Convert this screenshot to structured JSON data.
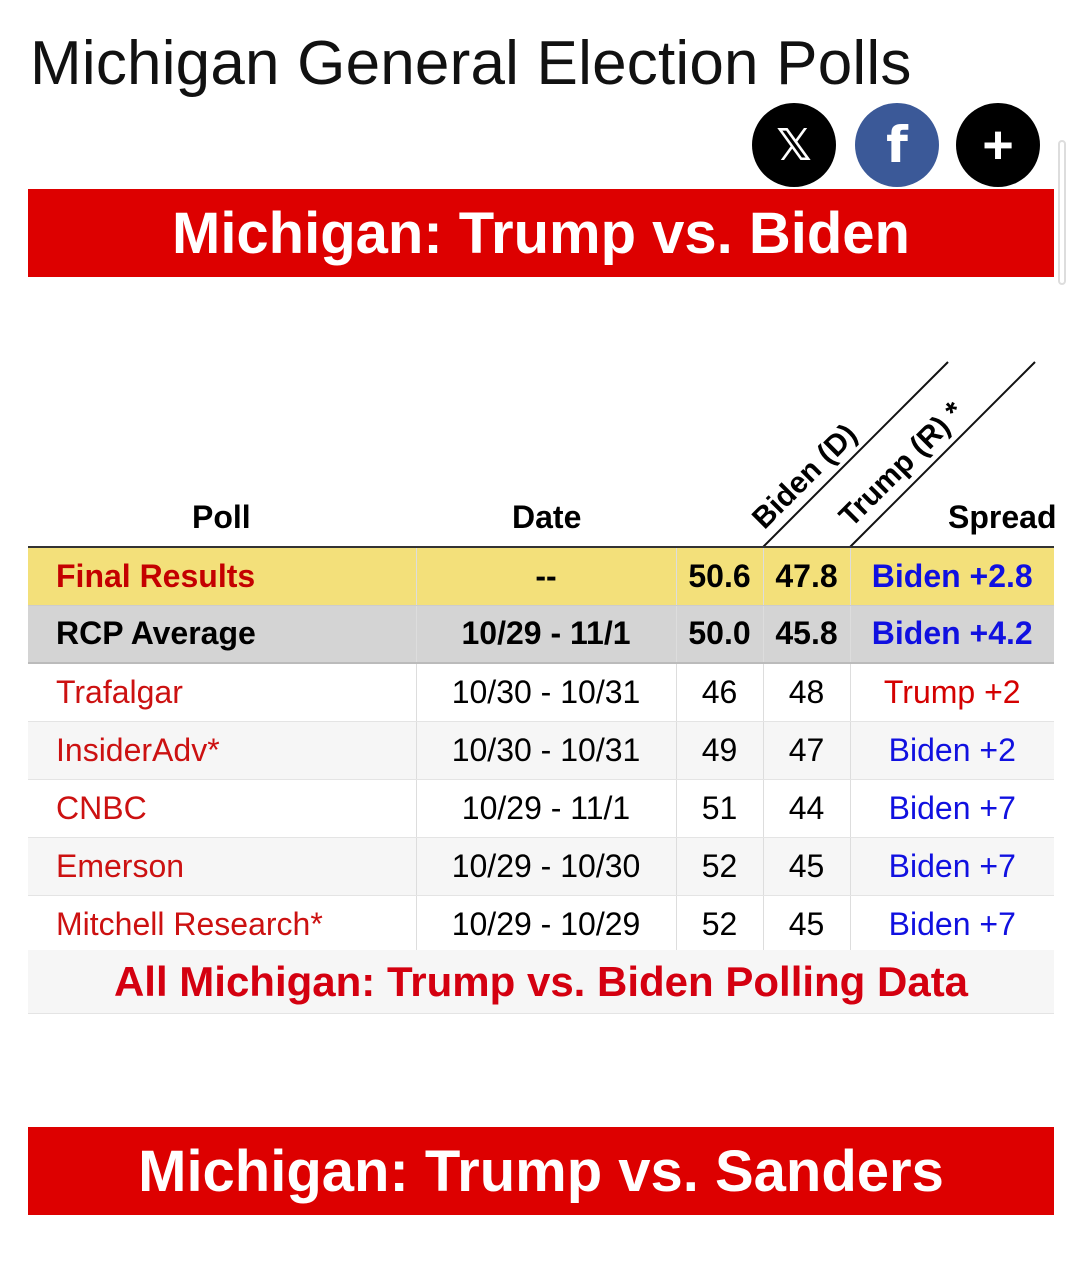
{
  "page": {
    "title": "Michigan General Election Polls"
  },
  "share": {
    "x_icon_glyph": "𝕏",
    "facebook_icon_glyph": "f",
    "more_icon_glyph": "+"
  },
  "race1": {
    "banner": "Michigan: Trump vs. Biden",
    "headers": {
      "poll": "Poll",
      "date": "Date",
      "biden": "Biden (D)",
      "trump": "Trump (R) *",
      "spread": "Spread"
    },
    "final": {
      "label": "Final Results",
      "date": "--",
      "biden": "50.6",
      "trump": "47.8",
      "spread": "Biden +2.8"
    },
    "average": {
      "label": "RCP Average",
      "date": "10/29 - 11/1",
      "biden": "50.0",
      "trump": "45.8",
      "spread": "Biden +4.2"
    },
    "polls": [
      {
        "name": "Trafalgar",
        "date": "10/30 - 10/31",
        "biden": "46",
        "trump": "48",
        "spread": "Trump +2",
        "leader": "R"
      },
      {
        "name": "InsiderAdv*",
        "date": "10/30 - 10/31",
        "biden": "49",
        "trump": "47",
        "spread": "Biden +2",
        "leader": "D"
      },
      {
        "name": "CNBC",
        "date": "10/29 - 11/1",
        "biden": "51",
        "trump": "44",
        "spread": "Biden +7",
        "leader": "D"
      },
      {
        "name": "Emerson",
        "date": "10/29 - 10/30",
        "biden": "52",
        "trump": "45",
        "spread": "Biden +7",
        "leader": "D"
      },
      {
        "name": "Mitchell Research*",
        "date": "10/29 - 10/29",
        "biden": "52",
        "trump": "45",
        "spread": "Biden +7",
        "leader": "D"
      }
    ],
    "all_data_link": "All Michigan: Trump vs. Biden Polling Data"
  },
  "race2": {
    "banner": "Michigan: Trump vs. Sanders"
  },
  "colors": {
    "banner_red": "#dd0000",
    "democrat_blue": "#1010e0",
    "republican_red": "#d40000",
    "final_row_yellow": "#f3e07a",
    "average_row_gray": "#d4d4d4"
  }
}
